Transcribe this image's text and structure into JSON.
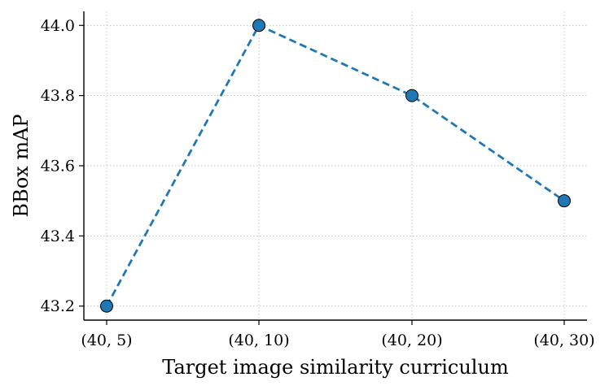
{
  "chart_data": {
    "type": "line",
    "categories": [
      "(40, 5)",
      "(40, 10)",
      "(40, 20)",
      "(40, 30)"
    ],
    "series": [
      {
        "values": [
          43.2,
          44.0,
          43.8,
          43.5
        ],
        "color": "#1f77b4",
        "line_style": "dashed",
        "marker": "circle"
      }
    ],
    "xlabel": "Target image similarity curriculum",
    "ylabel": "BBox mAP",
    "ylim": [
      43.16,
      44.04
    ],
    "yticks": [
      "43.2",
      "43.4",
      "43.6",
      "43.8",
      "44.0"
    ],
    "grid": true,
    "legend": false
  }
}
